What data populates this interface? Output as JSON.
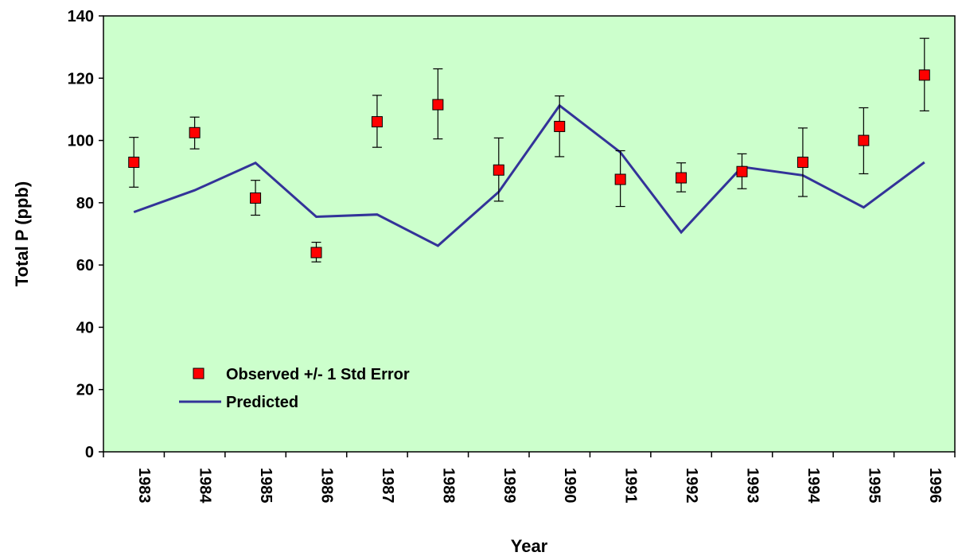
{
  "chart_data": {
    "type": "line",
    "xlabel": "Year",
    "ylabel": "Total P (ppb)",
    "ylim": [
      0,
      140
    ],
    "yticks": [
      0,
      20,
      40,
      60,
      80,
      100,
      120,
      140
    ],
    "categories": [
      "1983",
      "1984",
      "1985",
      "1986",
      "1987",
      "1988",
      "1989",
      "1990",
      "1991",
      "1992",
      "1993",
      "1994",
      "1995",
      "1996"
    ],
    "grid": false,
    "legend_position": "bottom-left",
    "plot_background": "#ccffcc",
    "series": [
      {
        "name": "Observed +/- 1 Std Error",
        "kind": "scatter-with-error",
        "color": "#ff0000",
        "values": [
          93,
          102.5,
          81.5,
          64,
          106,
          111.5,
          90.5,
          104.5,
          87.5,
          88,
          90,
          93,
          100,
          121
        ],
        "error_low": [
          85,
          97.3,
          76,
          61,
          97.8,
          100.5,
          80.5,
          94.8,
          78.8,
          83.5,
          84.5,
          82,
          89.3,
          109.5
        ],
        "error_high": [
          101,
          107.5,
          87.2,
          67.3,
          114.5,
          123,
          100.8,
          114.3,
          96.7,
          92.8,
          95.7,
          104,
          110.5,
          132.8
        ]
      },
      {
        "name": "Predicted",
        "kind": "line",
        "color": "#333399",
        "values": [
          77,
          84,
          92.8,
          75.5,
          76.2,
          66.2,
          83.5,
          111.2,
          96.2,
          70.5,
          91.5,
          88.8,
          78.5,
          93
        ]
      }
    ]
  }
}
